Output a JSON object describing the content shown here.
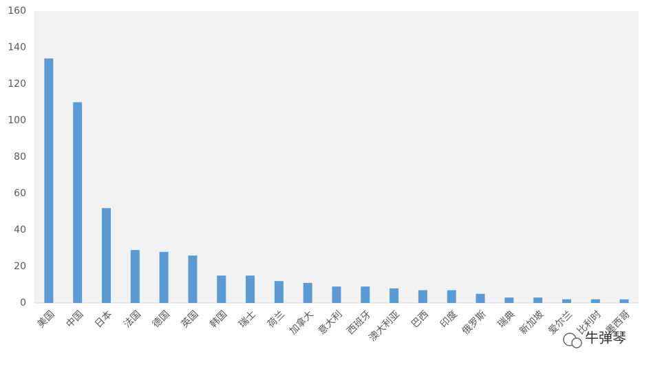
{
  "chart_data": {
    "type": "bar",
    "categories": [
      "美国",
      "中国",
      "日本",
      "法国",
      "德国",
      "英国",
      "韩国",
      "瑞士",
      "荷兰",
      "加拿大",
      "意大利",
      "西班牙",
      "澳大利亚",
      "巴西",
      "印度",
      "俄罗斯",
      "瑞典",
      "新加坡",
      "爱尔兰",
      "比利时",
      "墨西哥"
    ],
    "values": [
      134,
      110,
      52,
      29,
      28,
      26,
      15,
      15,
      12,
      11,
      9,
      9,
      8,
      7,
      7,
      5,
      3,
      3,
      2,
      2,
      2
    ],
    "color": "#5b9bd5",
    "ylim": [
      0,
      160
    ],
    "yticks": [
      0,
      20,
      40,
      60,
      80,
      100,
      120,
      140,
      160
    ],
    "grid": false,
    "watermark": "牛弹琴"
  }
}
